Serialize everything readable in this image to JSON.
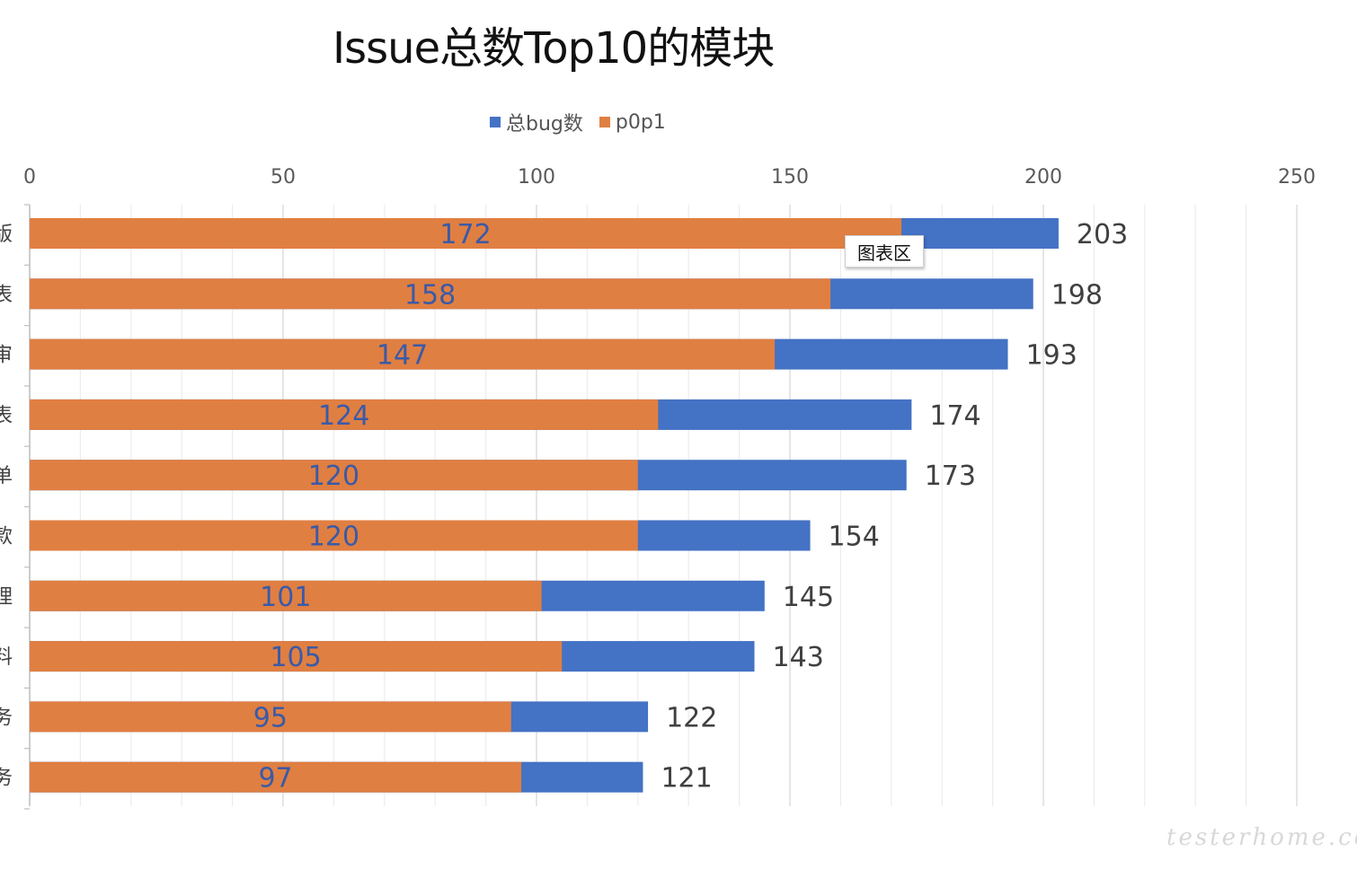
{
  "chart_data": {
    "type": "bar",
    "orientation": "horizontal",
    "stacked_overlay": true,
    "title": "Issue总数Top10的模块",
    "categories": [
      "版",
      "表",
      "审",
      "表",
      "单",
      "款",
      "理",
      "料",
      "务",
      "务"
    ],
    "series": [
      {
        "name": "总bug数",
        "color": "#4472c4",
        "values": [
          203,
          198,
          193,
          174,
          173,
          154,
          145,
          143,
          122,
          121
        ]
      },
      {
        "name": "p0p1",
        "color": "#e07f42",
        "values": [
          172,
          158,
          147,
          124,
          120,
          120,
          101,
          105,
          95,
          97
        ]
      }
    ],
    "xlim": [
      0,
      250
    ],
    "x_ticks": [
      "0",
      "50",
      "100",
      "150",
      "200",
      "250"
    ],
    "axis_position": "top",
    "grid": true,
    "legend_position": "top-center"
  },
  "tooltip": {
    "text": "图表区"
  },
  "watermark": {
    "text": "testerhome.com"
  }
}
